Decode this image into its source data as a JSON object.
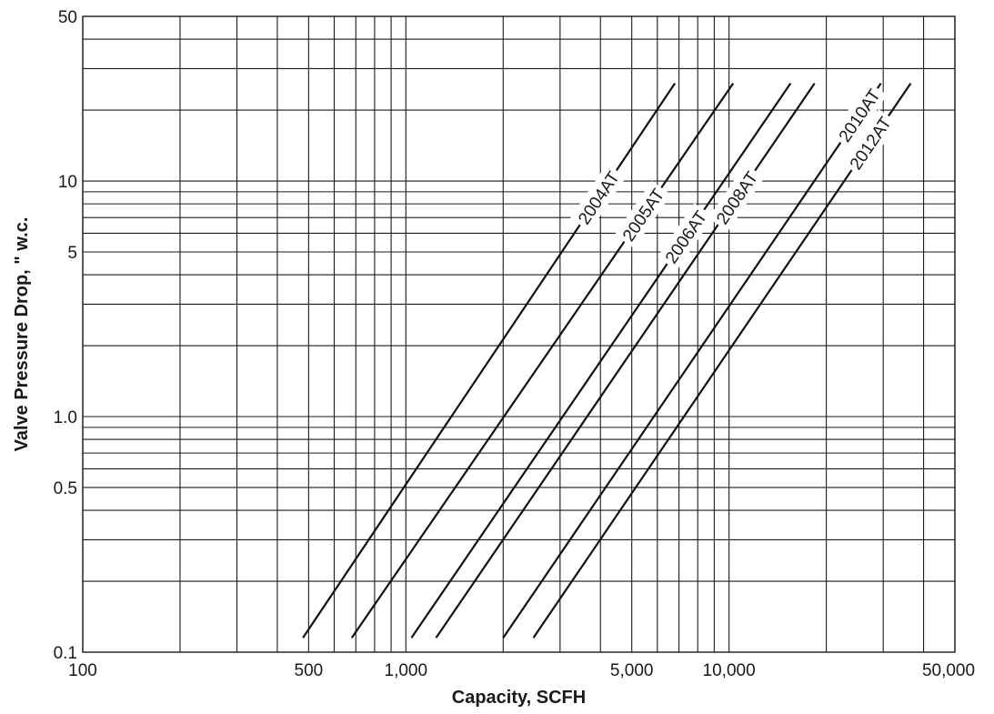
{
  "chart_data": {
    "type": "line",
    "title": "",
    "xlabel": "Capacity, SCFH",
    "ylabel": "Valve Pressure Drop, \" w.c.",
    "x_scale": "log",
    "y_scale": "log",
    "xlim": [
      100,
      50000
    ],
    "ylim": [
      0.1,
      50
    ],
    "grid": true,
    "legend": "none",
    "x_ticks": [
      {
        "value": 100,
        "label": "100"
      },
      {
        "value": 500,
        "label": "500"
      },
      {
        "value": 1000,
        "label": "1,000"
      },
      {
        "value": 5000,
        "label": "5,000"
      },
      {
        "value": 10000,
        "label": "10,000"
      },
      {
        "value": 50000,
        "label": "50,000"
      }
    ],
    "y_ticks": [
      {
        "value": 0.1,
        "label": "0.1"
      },
      {
        "value": 0.5,
        "label": "0.5"
      },
      {
        "value": 1.0,
        "label": "1.0"
      },
      {
        "value": 5,
        "label": "5"
      },
      {
        "value": 10,
        "label": "10"
      },
      {
        "value": 50,
        "label": "50"
      }
    ],
    "x_gridlines": [
      100,
      200,
      300,
      400,
      500,
      600,
      700,
      800,
      900,
      1000,
      2000,
      3000,
      4000,
      5000,
      6000,
      7000,
      8000,
      9000,
      10000,
      20000,
      30000,
      40000,
      50000
    ],
    "y_gridlines": [
      0.1,
      0.2,
      0.3,
      0.4,
      0.5,
      0.6,
      0.7,
      0.8,
      0.9,
      1,
      2,
      3,
      4,
      5,
      6,
      7,
      8,
      9,
      10,
      20,
      30,
      40,
      50
    ],
    "series": [
      {
        "name": "2004AT",
        "points": [
          {
            "x": 480,
            "y": 0.115
          },
          {
            "x": 6800,
            "y": 26
          }
        ]
      },
      {
        "name": "2005AT",
        "points": [
          {
            "x": 680,
            "y": 0.115
          },
          {
            "x": 10300,
            "y": 26
          }
        ]
      },
      {
        "name": "2006AT",
        "points": [
          {
            "x": 1040,
            "y": 0.115
          },
          {
            "x": 15500,
            "y": 26
          }
        ]
      },
      {
        "name": "2008AT",
        "points": [
          {
            "x": 1240,
            "y": 0.115
          },
          {
            "x": 18400,
            "y": 26
          }
        ]
      },
      {
        "name": "2010AT",
        "points": [
          {
            "x": 2000,
            "y": 0.115
          },
          {
            "x": 29500,
            "y": 26
          }
        ]
      },
      {
        "name": "2012AT",
        "points": [
          {
            "x": 2480,
            "y": 0.115
          },
          {
            "x": 36500,
            "y": 26
          }
        ]
      }
    ],
    "label_positions": [
      {
        "series": "2004AT",
        "at_y": 8.5
      },
      {
        "series": "2005AT",
        "at_y": 7.2
      },
      {
        "series": "2006AT",
        "at_y": 5.8
      },
      {
        "series": "2008AT",
        "at_y": 8.5
      },
      {
        "series": "2010AT",
        "at_y": 19
      },
      {
        "series": "2012AT",
        "at_y": 14.5
      }
    ]
  }
}
